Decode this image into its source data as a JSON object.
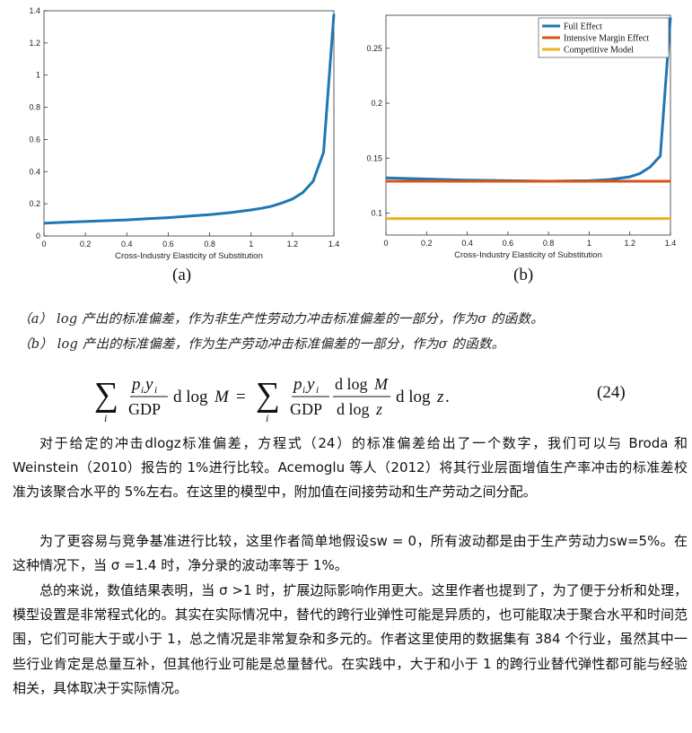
{
  "chart_data": [
    {
      "type": "line",
      "xlabel": "Cross-Industry Elasticity of Substitution",
      "ylabel": "",
      "xlim": [
        0,
        1.4
      ],
      "ylim": [
        0,
        1.4
      ],
      "x_ticks": [
        "0",
        "0.2",
        "0.4",
        "0.6",
        "0.8",
        "1",
        "1.2",
        "1.4"
      ],
      "y_ticks": [
        "0",
        "0.2",
        "0.4",
        "0.6",
        "0.8",
        "1",
        "1.2",
        "1.4"
      ],
      "grid": false,
      "series": [
        {
          "name": "",
          "color": "#1f77b4",
          "x": [
            0,
            0.1,
            0.2,
            0.3,
            0.4,
            0.5,
            0.6,
            0.7,
            0.8,
            0.9,
            1.0,
            1.05,
            1.1,
            1.15,
            1.2,
            1.25,
            1.3,
            1.35,
            1.4
          ],
          "y": [
            0.08,
            0.085,
            0.09,
            0.095,
            0.1,
            0.107,
            0.114,
            0.123,
            0.133,
            0.145,
            0.162,
            0.172,
            0.185,
            0.205,
            0.23,
            0.27,
            0.34,
            0.52,
            1.38
          ]
        }
      ]
    },
    {
      "type": "line",
      "xlabel": "Cross-Industry Elasticity of Substitution",
      "ylabel": "",
      "xlim": [
        0,
        1.4
      ],
      "ylim": [
        0.08,
        0.28
      ],
      "x_ticks": [
        "0",
        "0.2",
        "0.4",
        "0.6",
        "0.8",
        "1",
        "1.2",
        "1.4"
      ],
      "y_ticks": [
        "0.1",
        "0.15",
        "0.2",
        "0.25"
      ],
      "grid": false,
      "legend": "top-right",
      "series": [
        {
          "name": "Full Effect",
          "color": "#1f77b4",
          "x": [
            0,
            0.2,
            0.4,
            0.6,
            0.8,
            1.0,
            1.1,
            1.2,
            1.25,
            1.3,
            1.35,
            1.4
          ],
          "y": [
            0.132,
            0.131,
            0.13,
            0.1295,
            0.129,
            0.1295,
            0.1305,
            0.133,
            0.136,
            0.142,
            0.152,
            0.278
          ]
        },
        {
          "name": "Intensive Margin Effect",
          "color": "#d95319",
          "x": [
            0,
            1.4
          ],
          "y": [
            0.129,
            0.129
          ]
        },
        {
          "name": "Competitive Model",
          "color": "#edb120",
          "x": [
            0,
            1.4
          ],
          "y": [
            0.095,
            0.095
          ]
        }
      ]
    }
  ],
  "sublabels": {
    "a": "(a)",
    "b": "(b)"
  },
  "captions": {
    "a": "（a） log 产出的标准偏差，作为非生产性劳动力冲击标准偏差的一部分，作为σ 的函数。",
    "b": "（b） log 产出的标准偏差，作为生产劳动冲击标准偏差的一部分，作为σ 的函数。"
  },
  "equation": {
    "number": "(24)"
  },
  "paragraphs": [
    "对于给定的冲击dlogz标准偏差，方程式（24）的标准偏差给出了一个数字，我们可以与 Broda 和 Weinstein（2010）报告的 1%进行比较。Acemoglu 等人（2012）将其行业层面增值生产率冲击的标准差校准为该聚合水平的 5%左右。在这里的模型中，附加值在间接劳动和生产劳动之间分配。",
    "为了更容易与竞争基准进行比较，这里作者简单地假设sw = 0，所有波动都是由于生产劳动力sw=5%。在这种情况下，当 σ =1.4 时，净分录的波动率等于 1%。",
    "总的来说，数值结果表明，当 σ >1 时，扩展边际影响作用更大。这里作者也提到了，为了便于分析和处理，模型设置是非常程式化的。其实在实际情况中，替代的跨行业弹性可能是异质的，也可能取决于聚合水平和时间范围，它们可能大于或小于 1，总之情况是非常复杂和多元的。作者这里使用的数据集有 384 个行业，虽然其中一些行业肯定是总量互补，但其他行业可能是总量替代。在实践中，大于和小于 1 的跨行业替代弹性都可能与经验相关，具体取决于实际情况。"
  ]
}
